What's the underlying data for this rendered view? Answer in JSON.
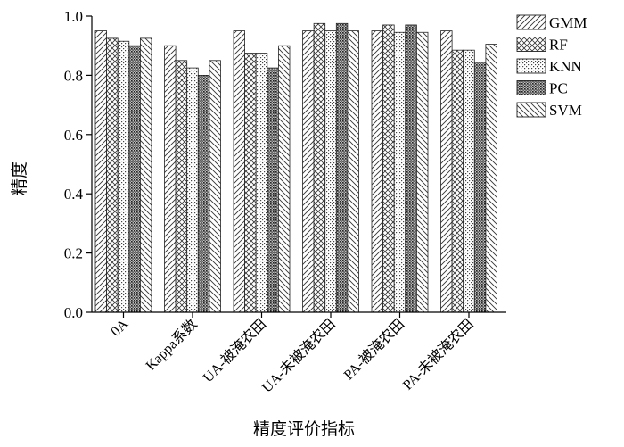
{
  "chart_data": {
    "type": "bar",
    "title": "",
    "xlabel": "精度评价指标",
    "ylabel": "精度",
    "ylim": [
      0.0,
      1.0
    ],
    "yticks": [
      "0.0",
      "0.2",
      "0.4",
      "0.6",
      "0.8",
      "1.0"
    ],
    "grid": false,
    "legend_position": "top-right",
    "categories": [
      "0A",
      "Kappa系数",
      "UA-被淹农田",
      "UA-未被淹农田",
      "PA-被淹农田",
      "PA-未被淹农田"
    ],
    "series": [
      {
        "name": "GMM",
        "pattern": "diag-up",
        "values": [
          0.95,
          0.9,
          0.95,
          0.95,
          0.95,
          0.95
        ]
      },
      {
        "name": "RF",
        "pattern": "crosshatch",
        "values": [
          0.925,
          0.85,
          0.875,
          0.975,
          0.97,
          0.885
        ]
      },
      {
        "name": "KNN",
        "pattern": "dots",
        "values": [
          0.915,
          0.825,
          0.875,
          0.95,
          0.945,
          0.885
        ]
      },
      {
        "name": "PC",
        "pattern": "dense-dots",
        "values": [
          0.9,
          0.8,
          0.825,
          0.975,
          0.97,
          0.845
        ]
      },
      {
        "name": "SVM",
        "pattern": "diag-down",
        "values": [
          0.925,
          0.85,
          0.9,
          0.95,
          0.945,
          0.905
        ]
      }
    ]
  }
}
